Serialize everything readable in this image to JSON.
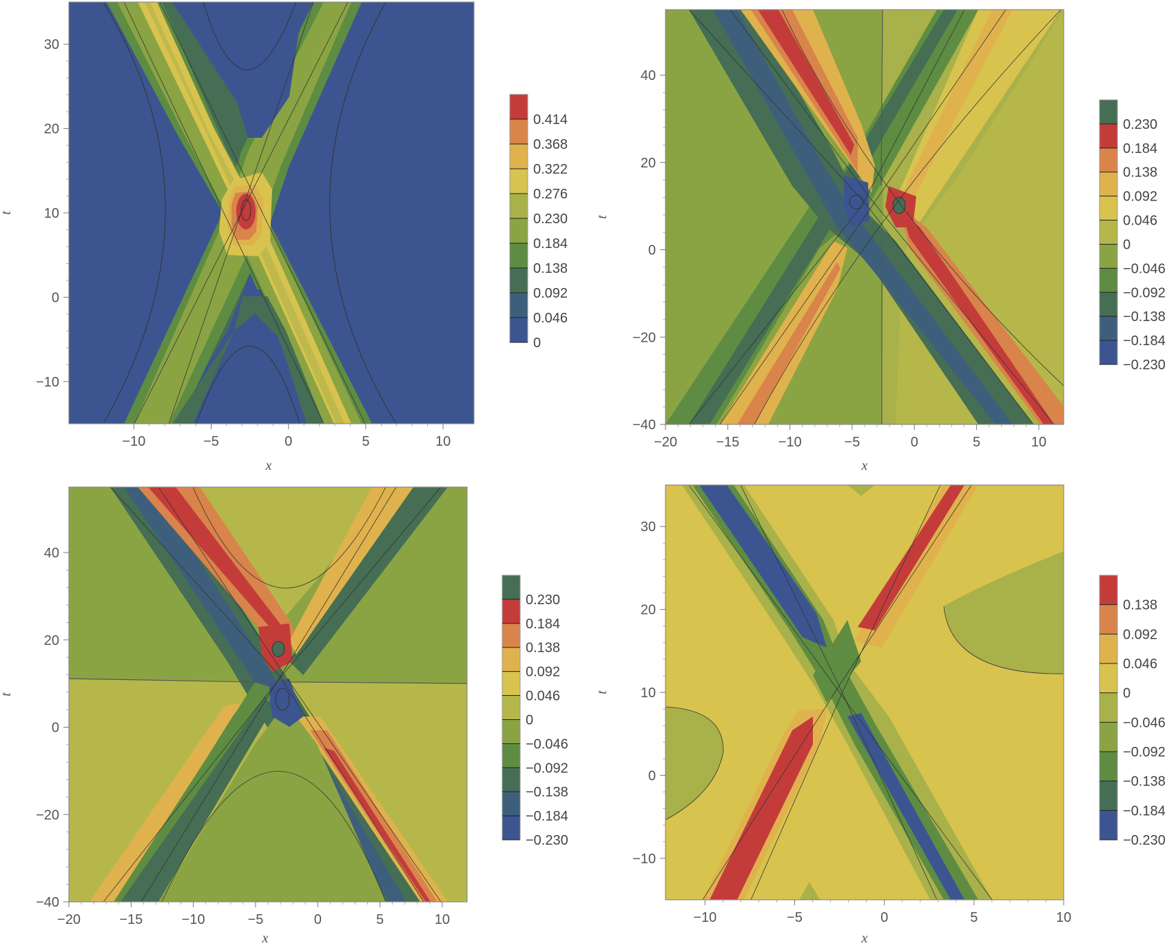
{
  "chart_data": [
    {
      "type": "contour",
      "title": "",
      "xlabel": "x",
      "ylabel": "t",
      "xlim": [
        -14.2,
        12
      ],
      "ylim": [
        -15,
        35
      ],
      "xticks": [
        "−10",
        "−5",
        "0",
        "5",
        "10"
      ],
      "xtick_values": [
        -10,
        -5,
        0,
        5,
        10
      ],
      "yticks": [
        "−10",
        "0",
        "10",
        "20",
        "30"
      ],
      "ytick_values": [
        -10,
        0,
        10,
        20,
        30
      ],
      "legend_placement": "right",
      "legend": {
        "labels": [
          "0.414",
          "0.368",
          "0.322",
          "0.276",
          "0.230",
          "0.184",
          "0.138",
          "0.092",
          "0.046",
          "0"
        ],
        "colors": [
          "#c43c3a",
          "#d9844a",
          "#e0b24d",
          "#d8c34f",
          "#a9b14a",
          "#8aa444",
          "#5e8c42",
          "#456e54",
          "#3e5f7c",
          "#3c5590"
        ]
      },
      "background_color": "#3c5590",
      "structure": {
        "center": [
          -2.5,
          10.5
        ],
        "branches": [
          "lower-left to upper-right",
          "upper-left to lower-right"
        ],
        "peak_value": 0.414
      }
    },
    {
      "type": "contour",
      "title": "",
      "xlabel": "x",
      "ylabel": "t",
      "xlim": [
        -20,
        12
      ],
      "ylim": [
        -40,
        55
      ],
      "xticks": [
        "−20",
        "−15",
        "−10",
        "−5",
        "0",
        "5",
        "10"
      ],
      "xtick_values": [
        -20,
        -15,
        -10,
        -5,
        0,
        5,
        10
      ],
      "yticks": [
        "−40",
        "−20",
        "0",
        "20",
        "40"
      ],
      "ytick_values": [
        -40,
        -20,
        0,
        20,
        40
      ],
      "legend_placement": "right",
      "legend": {
        "labels": [
          "0.230",
          "0.184",
          "0.138",
          "0.092",
          "0.046",
          "0",
          "−0.046",
          "−0.092",
          "−0.138",
          "−0.184",
          "−0.230"
        ],
        "colors": [
          "#456e54",
          "#c43c3a",
          "#d9844a",
          "#e0b24d",
          "#d8c34f",
          "#b5b74b",
          "#8aa444",
          "#5e8c42",
          "#456e54",
          "#3e5f7c",
          "#3c5590"
        ]
      },
      "background_color": "#8aa444",
      "structure": {
        "center": [
          -2.5,
          10
        ],
        "negative_lobe": [
          -4,
          11
        ],
        "positive_lobe": [
          -1,
          10
        ]
      }
    },
    {
      "type": "contour",
      "title": "",
      "xlabel": "x",
      "ylabel": "t",
      "xlim": [
        -20,
        12
      ],
      "ylim": [
        -40,
        55
      ],
      "xticks": [
        "−20",
        "−15",
        "−10",
        "−5",
        "0",
        "5",
        "10"
      ],
      "xtick_values": [
        -20,
        -15,
        -10,
        -5,
        0,
        5,
        10
      ],
      "yticks": [
        "−40",
        "−20",
        "0",
        "20",
        "40"
      ],
      "ytick_values": [
        -40,
        -20,
        0,
        20,
        40
      ],
      "legend_placement": "right",
      "legend": {
        "labels": [
          "0.230",
          "0.184",
          "0.138",
          "0.092",
          "0.046",
          "0",
          "−0.046",
          "−0.092",
          "−0.138",
          "−0.184",
          "−0.230"
        ],
        "colors": [
          "#456e54",
          "#c43c3a",
          "#d9844a",
          "#e0b24d",
          "#d8c34f",
          "#b5b74b",
          "#8aa444",
          "#5e8c42",
          "#456e54",
          "#3e5f7c",
          "#3c5590"
        ]
      },
      "background_color": "#8aa444",
      "structure": {
        "center": [
          -2.5,
          10.5
        ],
        "positive_lobe": [
          -2.8,
          17
        ],
        "negative_lobe": [
          -2.5,
          4
        ]
      }
    },
    {
      "type": "contour",
      "title": "",
      "xlabel": "x",
      "ylabel": "t",
      "xlim": [
        -12.2,
        10
      ],
      "ylim": [
        -15,
        35
      ],
      "xticks": [
        "−10",
        "−5",
        "0",
        "5",
        "10"
      ],
      "xtick_values": [
        -10,
        -5,
        0,
        5,
        10
      ],
      "yticks": [
        "−10",
        "0",
        "10",
        "20",
        "30"
      ],
      "ytick_values": [
        -10,
        0,
        10,
        20,
        30
      ],
      "legend_placement": "right",
      "legend": {
        "labels": [
          "0.138",
          "0.092",
          "0.046",
          "0",
          "−0.046",
          "−0.092",
          "−0.138",
          "−0.184",
          "−0.230"
        ],
        "colors": [
          "#c43c3a",
          "#d9844a",
          "#e0b24d",
          "#d8c34f",
          "#a9b14a",
          "#8aa444",
          "#5e8c42",
          "#456e54",
          "#3c5590"
        ]
      },
      "background_color": "#d8c34f",
      "structure": {
        "center": [
          -2.5,
          10
        ],
        "positive_band": "lower-left to upper-right",
        "negative_band": "upper-left to lower-right"
      }
    }
  ]
}
